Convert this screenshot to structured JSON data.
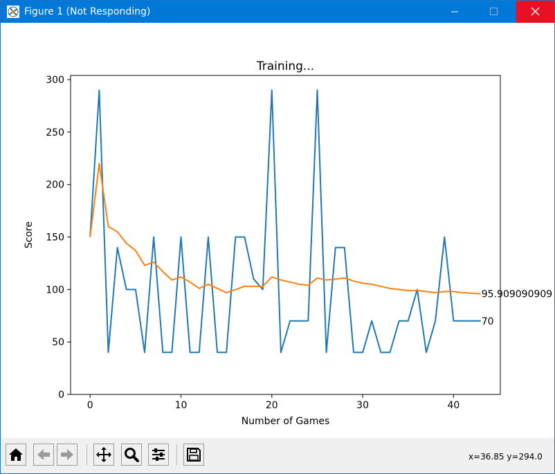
{
  "window": {
    "title": "Figure 1 (Not Responding)"
  },
  "toolbar": {
    "buttons": [
      "home-icon",
      "back-arrow-icon",
      "forward-arrow-icon",
      "pan-icon",
      "zoom-icon",
      "configure-subplots-icon",
      "save-icon"
    ],
    "coords": "x=36.85 y=294.0"
  },
  "colors": {
    "titlebar": "#0078d7",
    "close": "#e81123",
    "scores": "#1f77b4",
    "mean_scores": "#ff7f0e"
  },
  "chart_data": {
    "type": "line",
    "title": "Training...",
    "xlabel": "Number of Games",
    "ylabel": "Score",
    "xlim": [
      -2.15,
      45.15
    ],
    "ylim": [
      0,
      304
    ],
    "xticks": [
      0,
      10,
      20,
      30,
      40
    ],
    "yticks": [
      0,
      50,
      100,
      150,
      200,
      250,
      300
    ],
    "grid": false,
    "series": [
      {
        "key": "scores",
        "x": [
          0,
          1,
          2,
          3,
          4,
          5,
          6,
          7,
          8,
          9,
          10,
          11,
          12,
          13,
          14,
          15,
          16,
          17,
          18,
          19,
          20,
          21,
          22,
          23,
          24,
          25,
          26,
          27,
          28,
          29,
          30,
          31,
          32,
          33,
          34,
          35,
          36,
          37,
          38,
          39,
          40,
          41,
          42,
          43
        ],
        "values": [
          150,
          290,
          40,
          140,
          100,
          100,
          40,
          150,
          40,
          40,
          150,
          40,
          40,
          150,
          40,
          40,
          150,
          150,
          110,
          100,
          290,
          40,
          70,
          70,
          70,
          290,
          40,
          140,
          140,
          40,
          40,
          70,
          40,
          40,
          70,
          70,
          100,
          40,
          70,
          150,
          70,
          70,
          70,
          70
        ]
      },
      {
        "key": "mean_scores",
        "x": [
          0,
          1,
          2,
          3,
          4,
          5,
          6,
          7,
          8,
          9,
          10,
          11,
          12,
          13,
          14,
          15,
          16,
          17,
          18,
          19,
          20,
          21,
          22,
          23,
          24,
          25,
          26,
          27,
          28,
          29,
          30,
          31,
          32,
          33,
          34,
          35,
          36,
          37,
          38,
          39,
          40,
          41,
          42,
          43
        ],
        "values": [
          150,
          220,
          160,
          155,
          144,
          137,
          123,
          126,
          117,
          109,
          112,
          107,
          101,
          105,
          101,
          97,
          100,
          103,
          103,
          103,
          112,
          109,
          107,
          105,
          104,
          111,
          109,
          110,
          111,
          108,
          106,
          105,
          103,
          101,
          100,
          99,
          99,
          98,
          97,
          98,
          98,
          97,
          96.5,
          95.9
        ]
      }
    ],
    "annotations": [
      {
        "x": 43,
        "y": 95.9,
        "text": "95.909090909"
      },
      {
        "x": 43,
        "y": 70,
        "text": "70"
      }
    ]
  }
}
